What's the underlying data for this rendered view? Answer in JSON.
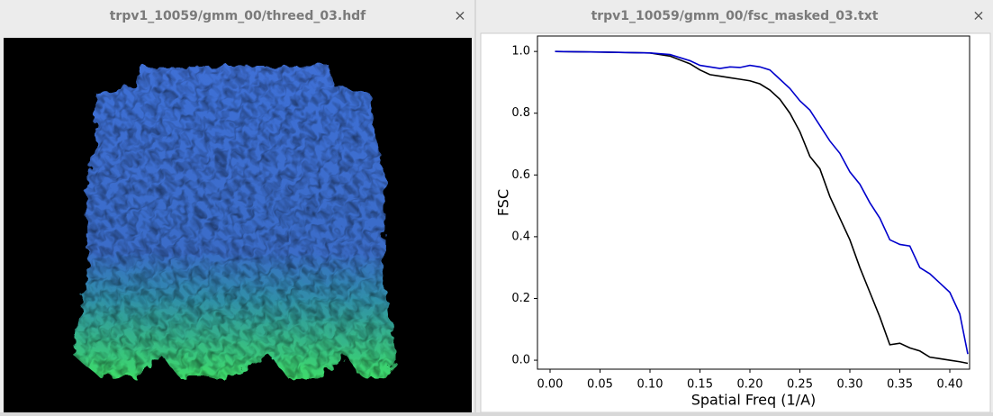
{
  "windows": [
    {
      "title": "trpv1_10059/gmm_00/threed_03.hdf",
      "close": "×"
    },
    {
      "title": "trpv1_10059/gmm_00/fsc_masked_03.txt",
      "close": "×"
    }
  ],
  "chart_data": {
    "type": "line",
    "xlabel": "Spatial Freq (1/A)",
    "ylabel": "FSC",
    "x": [
      0.005,
      0.05,
      0.1,
      0.12,
      0.14,
      0.15,
      0.16,
      0.17,
      0.18,
      0.19,
      0.2,
      0.21,
      0.22,
      0.23,
      0.24,
      0.25,
      0.26,
      0.27,
      0.28,
      0.29,
      0.3,
      0.31,
      0.32,
      0.33,
      0.34,
      0.35,
      0.36,
      0.37,
      0.38,
      0.39,
      0.4,
      0.41,
      0.418
    ],
    "series": [
      {
        "color": "#000000",
        "values": [
          1.0,
          0.998,
          0.995,
          0.985,
          0.96,
          0.94,
          0.925,
          0.92,
          0.915,
          0.91,
          0.905,
          0.895,
          0.875,
          0.845,
          0.8,
          0.74,
          0.66,
          0.62,
          0.53,
          0.46,
          0.39,
          0.3,
          0.22,
          0.14,
          0.05,
          0.055,
          0.04,
          0.03,
          0.01,
          0.005,
          0.0,
          -0.005,
          -0.01
        ]
      },
      {
        "color": "#0000cc",
        "values": [
          1.0,
          0.998,
          0.995,
          0.99,
          0.97,
          0.955,
          0.95,
          0.945,
          0.95,
          0.948,
          0.955,
          0.95,
          0.94,
          0.91,
          0.88,
          0.84,
          0.81,
          0.76,
          0.71,
          0.67,
          0.61,
          0.57,
          0.51,
          0.46,
          0.39,
          0.375,
          0.37,
          0.3,
          0.28,
          0.25,
          0.22,
          0.15,
          0.02
        ]
      }
    ],
    "xlim": [
      -0.0126,
      0.4198
    ],
    "ylim": [
      -0.029,
      1.05
    ],
    "xticks": [
      {
        "value": 0,
        "label": "0.00"
      },
      0.05,
      {
        "value": 0.1,
        "label": "0.10"
      },
      0.15,
      {
        "value": 0.2,
        "label": "0.20"
      },
      0.25,
      {
        "value": 0.3,
        "label": "0.30"
      },
      0.35,
      {
        "value": 0.4,
        "label": "0.40"
      }
    ],
    "yticks": [
      {
        "value": 0,
        "label": "0.0"
      },
      0.2,
      0.4,
      0.6,
      0.8,
      {
        "value": 1,
        "label": "1.0"
      }
    ]
  }
}
